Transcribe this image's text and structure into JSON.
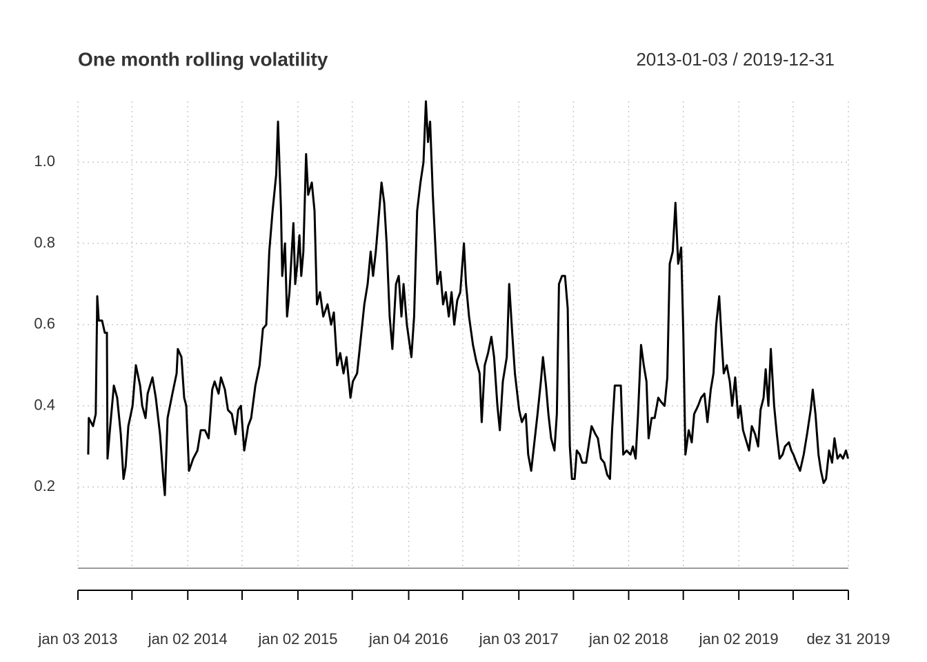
{
  "chart_data": {
    "type": "line",
    "title": "One month rolling volatility",
    "subtitle": "2013-01-03 / 2019-12-31",
    "color": "#000000",
    "grid": true,
    "xlim": [
      "2013-01-03",
      "2019-12-31"
    ],
    "ylim": [
      0,
      1.15
    ],
    "yticks": [
      0.2,
      0.4,
      0.6,
      0.8,
      {
        "value": 1,
        "label": "1.0"
      }
    ],
    "xticks": [
      {
        "value": "2013-01-03",
        "label": "jan 03 2013"
      },
      {
        "value": "2013-07-01",
        "label": null
      },
      {
        "value": "2014-01-02",
        "label": "jan 02 2014"
      },
      {
        "value": "2014-07-01",
        "label": null
      },
      {
        "value": "2015-01-02",
        "label": "jan 02 2015"
      },
      {
        "value": "2015-07-01",
        "label": null
      },
      {
        "value": "2016-01-04",
        "label": "jan 04 2016"
      },
      {
        "value": "2016-07-01",
        "label": null
      },
      {
        "value": "2017-01-03",
        "label": "jan 03 2017"
      },
      {
        "value": "2017-07-03",
        "label": null
      },
      {
        "value": "2018-01-02",
        "label": "jan 02 2018"
      },
      {
        "value": "2018-07-02",
        "label": null
      },
      {
        "value": "2019-01-02",
        "label": "jan 02 2019"
      },
      {
        "value": "2019-07-01",
        "label": null
      },
      {
        "value": "2019-12-31",
        "label": "dez 31 2019"
      }
    ],
    "x": [
      "2013-02-06",
      "2013-02-08",
      "2013-02-22",
      "2013-03-03",
      "2013-03-08",
      "2013-03-13",
      "2013-03-24",
      "2013-04-02",
      "2013-04-09",
      "2013-04-11",
      "2013-04-20",
      "2013-05-02",
      "2013-05-13",
      "2013-05-25",
      "2013-06-03",
      "2013-06-10",
      "2013-06-19",
      "2013-07-03",
      "2013-07-14",
      "2013-07-28",
      "2013-08-04",
      "2013-08-15",
      "2013-08-22",
      "2013-09-07",
      "2013-09-18",
      "2013-10-02",
      "2013-10-13",
      "2013-10-18",
      "2013-10-27",
      "2013-11-12",
      "2013-11-26",
      "2013-11-30",
      "2013-12-12",
      "2013-12-21",
      "2013-12-28",
      "2014-01-06",
      "2014-01-20",
      "2014-02-03",
      "2014-02-14",
      "2014-02-28",
      "2014-03-12",
      "2014-03-24",
      "2014-04-01",
      "2014-04-14",
      "2014-04-22",
      "2014-05-05",
      "2014-05-15",
      "2014-05-28",
      "2014-06-09",
      "2014-06-18",
      "2014-06-27",
      "2014-07-08",
      "2014-07-21",
      "2014-07-31",
      "2014-08-14",
      "2014-08-28",
      "2014-09-08",
      "2014-09-19",
      "2014-09-29",
      "2014-10-10",
      "2014-10-22",
      "2014-10-28",
      "2014-11-07",
      "2014-11-11",
      "2014-11-20",
      "2014-11-27",
      "2014-12-05",
      "2014-12-18",
      "2014-12-24",
      "2014-12-31",
      "2015-01-07",
      "2015-01-13",
      "2015-01-20",
      "2015-01-29",
      "2015-02-05",
      "2015-02-17",
      "2015-02-26",
      "2015-03-06",
      "2015-03-16",
      "2015-03-27",
      "2015-04-10",
      "2015-04-22",
      "2015-05-01",
      "2015-05-12",
      "2015-05-22",
      "2015-06-02",
      "2015-06-12",
      "2015-06-25",
      "2015-07-03",
      "2015-07-17",
      "2015-07-27",
      "2015-08-10",
      "2015-08-21",
      "2015-08-31",
      "2015-09-08",
      "2015-09-17",
      "2015-09-25",
      "2015-10-06",
      "2015-10-15",
      "2015-10-23",
      "2015-11-02",
      "2015-11-11",
      "2015-11-23",
      "2015-12-02",
      "2015-12-11",
      "2015-12-18",
      "2015-12-29",
      "2016-01-13",
      "2016-01-22",
      "2016-02-01",
      "2016-02-12",
      "2016-02-22",
      "2016-03-01",
      "2016-03-08",
      "2016-03-15",
      "2016-03-24",
      "2016-04-01",
      "2016-04-08",
      "2016-04-18",
      "2016-04-27",
      "2016-05-06",
      "2016-05-16",
      "2016-05-25",
      "2016-06-03",
      "2016-06-13",
      "2016-06-23",
      "2016-07-05",
      "2016-07-12",
      "2016-07-22",
      "2016-08-04",
      "2016-08-15",
      "2016-08-26",
      "2016-09-02",
      "2016-09-12",
      "2016-09-23",
      "2016-10-04",
      "2016-10-13",
      "2016-10-24",
      "2016-11-01",
      "2016-11-11",
      "2016-11-24",
      "2016-12-02",
      "2016-12-12",
      "2016-12-21",
      "2017-01-04",
      "2017-01-13",
      "2017-01-26",
      "2017-02-03",
      "2017-02-13",
      "2017-02-22",
      "2017-03-06",
      "2017-03-17",
      "2017-03-24",
      "2017-04-03",
      "2017-04-11",
      "2017-04-20",
      "2017-05-01",
      "2017-05-09",
      "2017-05-16",
      "2017-05-26",
      "2017-06-05",
      "2017-06-14",
      "2017-06-21",
      "2017-06-28",
      "2017-07-07",
      "2017-07-14",
      "2017-07-24",
      "2017-08-01",
      "2017-08-14",
      "2017-08-22",
      "2017-09-01",
      "2017-09-14",
      "2017-09-22",
      "2017-10-02",
      "2017-10-13",
      "2017-10-23",
      "2017-11-01",
      "2017-11-08",
      "2017-11-17",
      "2017-11-28",
      "2017-12-07",
      "2017-12-15",
      "2017-12-26",
      "2018-01-08",
      "2018-01-16",
      "2018-01-25",
      "2018-02-02",
      "2018-02-12",
      "2018-02-21",
      "2018-03-02",
      "2018-03-09",
      "2018-03-19",
      "2018-03-29",
      "2018-04-10",
      "2018-04-19",
      "2018-05-01",
      "2018-05-10",
      "2018-05-18",
      "2018-05-28",
      "2018-06-06",
      "2018-06-15",
      "2018-06-25",
      "2018-07-02",
      "2018-07-09",
      "2018-07-20",
      "2018-07-30",
      "2018-08-07",
      "2018-08-20",
      "2018-08-30",
      "2018-09-10",
      "2018-09-20",
      "2018-10-01",
      "2018-10-10",
      "2018-10-19",
      "2018-10-29",
      "2018-11-07",
      "2018-11-13",
      "2018-11-23",
      "2018-12-03",
      "2018-12-11",
      "2018-12-21",
      "2018-12-31",
      "2019-01-07",
      "2019-01-16",
      "2019-01-28",
      "2019-02-05",
      "2019-02-14",
      "2019-02-25",
      "2019-03-07",
      "2019-03-15",
      "2019-03-25",
      "2019-04-01",
      "2019-04-10",
      "2019-04-18",
      "2019-04-29",
      "2019-05-08",
      "2019-05-17",
      "2019-05-27",
      "2019-06-04",
      "2019-06-17",
      "2019-06-25",
      "2019-07-02",
      "2019-07-12",
      "2019-07-24",
      "2019-08-05",
      "2019-08-16",
      "2019-08-28",
      "2019-09-04",
      "2019-09-13",
      "2019-09-23",
      "2019-10-01",
      "2019-10-10",
      "2019-10-18",
      "2019-10-28",
      "2019-11-07",
      "2019-11-15",
      "2019-11-25",
      "2019-12-04",
      "2019-12-13",
      "2019-12-23",
      "2019-12-30"
    ],
    "values": [
      0.28,
      0.37,
      0.35,
      0.38,
      0.67,
      0.61,
      0.61,
      0.58,
      0.58,
      0.27,
      0.35,
      0.45,
      0.42,
      0.33,
      0.22,
      0.25,
      0.35,
      0.4,
      0.5,
      0.45,
      0.4,
      0.37,
      0.43,
      0.47,
      0.42,
      0.33,
      0.22,
      0.18,
      0.37,
      0.43,
      0.48,
      0.54,
      0.52,
      0.42,
      0.4,
      0.24,
      0.27,
      0.29,
      0.34,
      0.34,
      0.32,
      0.44,
      0.46,
      0.43,
      0.47,
      0.44,
      0.39,
      0.38,
      0.33,
      0.39,
      0.4,
      0.29,
      0.35,
      0.37,
      0.45,
      0.5,
      0.59,
      0.6,
      0.78,
      0.88,
      0.97,
      1.1,
      0.88,
      0.72,
      0.8,
      0.62,
      0.68,
      0.85,
      0.7,
      0.75,
      0.82,
      0.72,
      0.78,
      1.02,
      0.92,
      0.95,
      0.88,
      0.65,
      0.68,
      0.62,
      0.65,
      0.6,
      0.63,
      0.5,
      0.53,
      0.48,
      0.52,
      0.42,
      0.46,
      0.48,
      0.55,
      0.65,
      0.7,
      0.78,
      0.72,
      0.78,
      0.85,
      0.95,
      0.9,
      0.8,
      0.62,
      0.54,
      0.7,
      0.72,
      0.62,
      0.7,
      0.6,
      0.52,
      0.62,
      0.88,
      0.95,
      1.0,
      1.15,
      1.05,
      1.1,
      0.92,
      0.8,
      0.7,
      0.73,
      0.65,
      0.68,
      0.62,
      0.68,
      0.6,
      0.66,
      0.68,
      0.8,
      0.7,
      0.62,
      0.55,
      0.51,
      0.48,
      0.36,
      0.5,
      0.53,
      0.57,
      0.52,
      0.4,
      0.34,
      0.46,
      0.52,
      0.7,
      0.58,
      0.48,
      0.39,
      0.36,
      0.38,
      0.28,
      0.24,
      0.3,
      0.38,
      0.46,
      0.52,
      0.45,
      0.38,
      0.32,
      0.29,
      0.38,
      0.7,
      0.72,
      0.72,
      0.64,
      0.3,
      0.22,
      0.22,
      0.29,
      0.28,
      0.26,
      0.26,
      0.3,
      0.35,
      0.33,
      0.32,
      0.27,
      0.26,
      0.23,
      0.22,
      0.34,
      0.45,
      0.45,
      0.45,
      0.28,
      0.29,
      0.28,
      0.3,
      0.27,
      0.38,
      0.55,
      0.5,
      0.46,
      0.32,
      0.37,
      0.37,
      0.42,
      0.41,
      0.4,
      0.47,
      0.75,
      0.78,
      0.9,
      0.75,
      0.79,
      0.58,
      0.28,
      0.34,
      0.31,
      0.38,
      0.4,
      0.42,
      0.43,
      0.36,
      0.44,
      0.48,
      0.6,
      0.67,
      0.55,
      0.48,
      0.5,
      0.46,
      0.4,
      0.47,
      0.37,
      0.4,
      0.34,
      0.31,
      0.29,
      0.35,
      0.33,
      0.3,
      0.39,
      0.42,
      0.49,
      0.4,
      0.54,
      0.4,
      0.33,
      0.27,
      0.28,
      0.3,
      0.31,
      0.29,
      0.28,
      0.26,
      0.24,
      0.28,
      0.33,
      0.39,
      0.44,
      0.38,
      0.28,
      0.24,
      0.21,
      0.22,
      0.29,
      0.26,
      0.32,
      0.27,
      0.28,
      0.27,
      0.29,
      0.27
    ]
  }
}
